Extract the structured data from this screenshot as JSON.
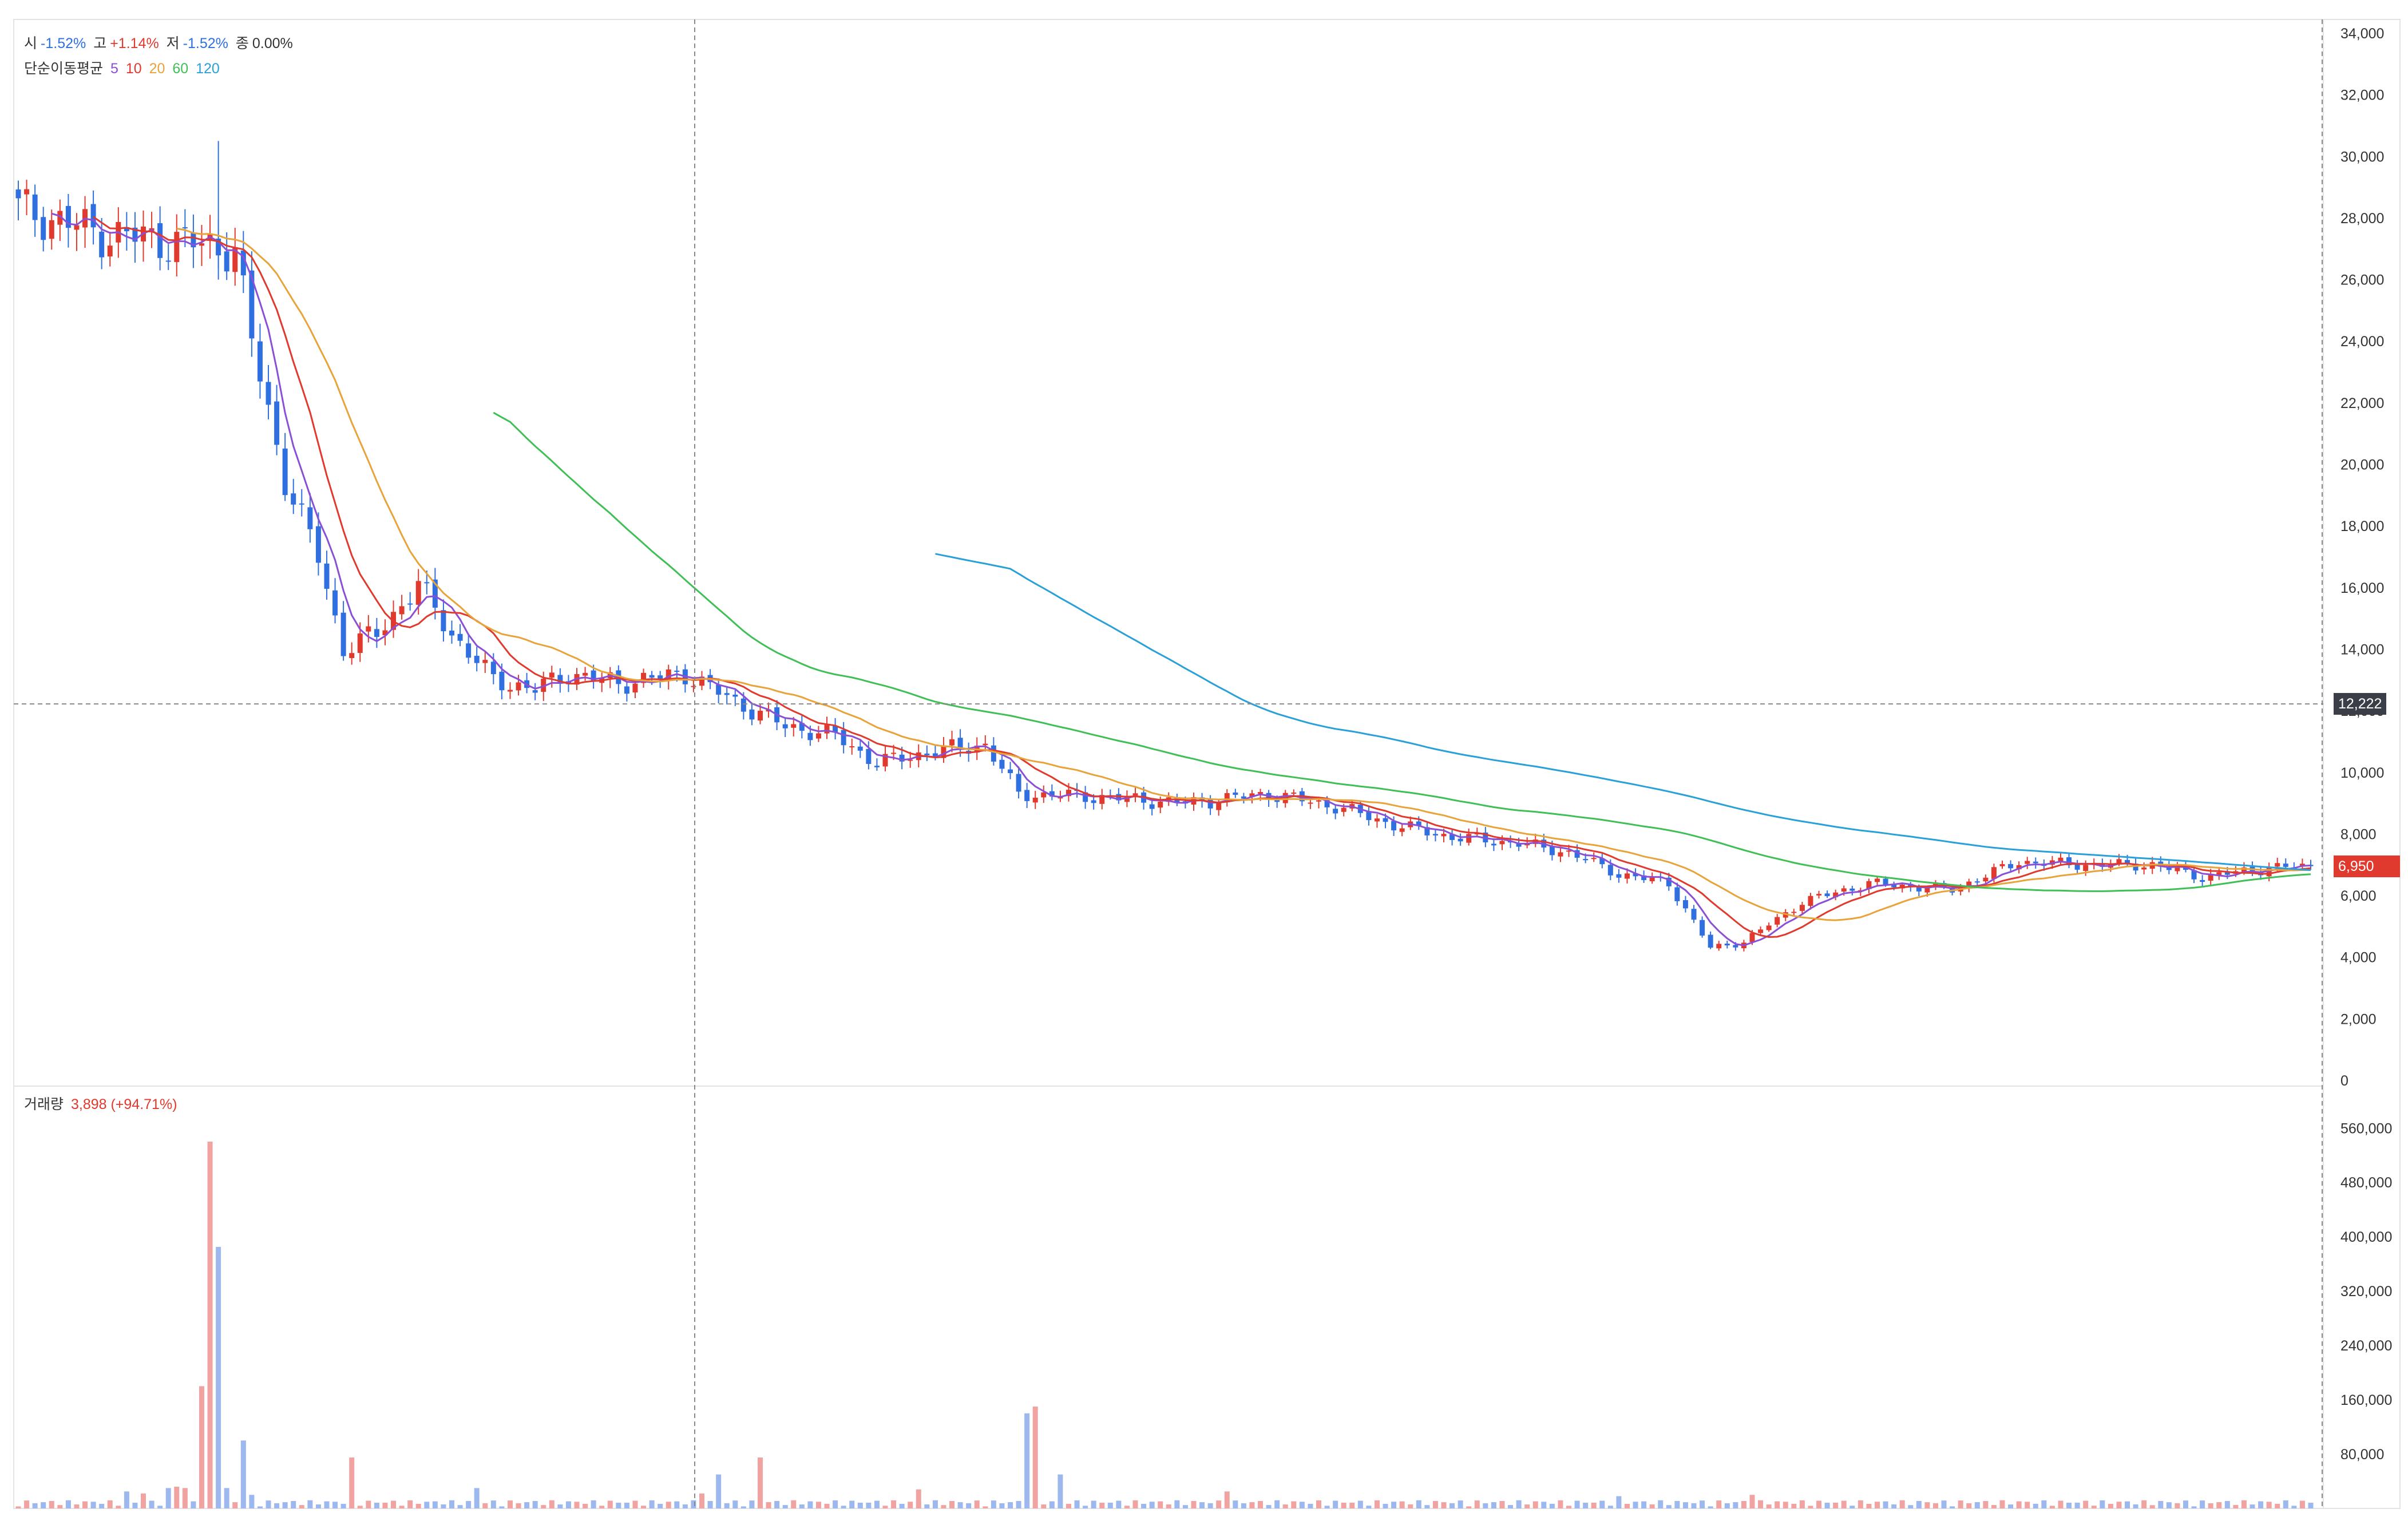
{
  "legend": {
    "open_label": "시",
    "open_value": "-1.52%",
    "high_label": "고",
    "high_value": "+1.14%",
    "low_label": "저",
    "low_value": "-1.52%",
    "close_label": "종",
    "close_value": "0.00%",
    "ma_label": "단순이동평균",
    "ma_periods": [
      "5",
      "10",
      "20",
      "60",
      "120"
    ],
    "volume_label": "거래량",
    "volume_value": "3,898 (+94.71%)"
  },
  "colors": {
    "up": "#e0392d",
    "down": "#2f6fe0",
    "ma5": "#8b4fd6",
    "ma10": "#e0392d",
    "ma20": "#e8a33a",
    "ma60": "#3fbf55",
    "ma120": "#2aa0d8",
    "vol_up": "#f0a3a0",
    "vol_down": "#9cb8ef",
    "grid": "#e6e6e6",
    "crosshair": "#888888"
  },
  "crosshair": {
    "price_label": "12,222",
    "price": 12222
  },
  "current_price": {
    "label": "6,950",
    "price": 6950
  },
  "chart_data": [
    {
      "type": "candlestick",
      "ylim": [
        0,
        34000
      ],
      "yticks": [
        0,
        2000,
        4000,
        6000,
        8000,
        10000,
        12000,
        14000,
        16000,
        18000,
        20000,
        22000,
        24000,
        26000,
        28000,
        30000,
        32000,
        34000
      ],
      "ytick_labels": [
        "0",
        "2,000",
        "4,000",
        "6,000",
        "8,000",
        "10,000",
        "12,000",
        "14,000",
        "16,000",
        "18,000",
        "20,000",
        "22,000",
        "24,000",
        "26,000",
        "28,000",
        "30,000",
        "32,000",
        "34,000"
      ],
      "close_anchors": [
        [
          0,
          28300
        ],
        [
          10,
          27500
        ],
        [
          20,
          27200
        ],
        [
          26,
          27000
        ],
        [
          28,
          24000
        ],
        [
          32,
          19500
        ],
        [
          36,
          17000
        ],
        [
          39,
          14000
        ],
        [
          43,
          14500
        ],
        [
          48,
          16100
        ],
        [
          52,
          14500
        ],
        [
          57,
          13000
        ],
        [
          62,
          12700
        ],
        [
          66,
          13200
        ],
        [
          72,
          12900
        ],
        [
          80,
          13200
        ],
        [
          86,
          12300
        ],
        [
          92,
          11500
        ],
        [
          98,
          11200
        ],
        [
          103,
          10300
        ],
        [
          110,
          10700
        ],
        [
          116,
          10900
        ],
        [
          120,
          9300
        ],
        [
          130,
          9200
        ],
        [
          140,
          9000
        ],
        [
          150,
          9300
        ],
        [
          158,
          8900
        ],
        [
          165,
          8300
        ],
        [
          172,
          7900
        ],
        [
          180,
          7700
        ],
        [
          186,
          7400
        ],
        [
          192,
          6700
        ],
        [
          198,
          6400
        ],
        [
          203,
          4300
        ],
        [
          207,
          4500
        ],
        [
          214,
          5800
        ],
        [
          222,
          6400
        ],
        [
          232,
          6200
        ],
        [
          240,
          7100
        ],
        [
          248,
          7000
        ],
        [
          256,
          7000
        ],
        [
          262,
          6600
        ],
        [
          270,
          6900
        ],
        [
          275,
          6950
        ]
      ],
      "ma_start_index": {
        "ma5": 4,
        "ma10": 9,
        "ma20": 19,
        "ma60": 57,
        "ma120": 110
      }
    },
    {
      "type": "bar",
      "ylim": [
        0,
        600000
      ],
      "yticks": [
        80000,
        160000,
        240000,
        320000,
        400000,
        480000,
        560000
      ],
      "ytick_labels": [
        "80,000",
        "160,000",
        "240,000",
        "320,000",
        "400,000",
        "480,000",
        "560,000"
      ],
      "spikes": [
        [
          13,
          25000
        ],
        [
          15,
          22000
        ],
        [
          18,
          30000
        ],
        [
          19,
          32000
        ],
        [
          20,
          30000
        ],
        [
          22,
          180000
        ],
        [
          23,
          540000
        ],
        [
          24,
          385000
        ],
        [
          25,
          30000
        ],
        [
          27,
          100000
        ],
        [
          28,
          20000
        ],
        [
          40,
          75000
        ],
        [
          55,
          30000
        ],
        [
          82,
          22000
        ],
        [
          84,
          50000
        ],
        [
          89,
          75000
        ],
        [
          108,
          28000
        ],
        [
          121,
          140000
        ],
        [
          122,
          150000
        ],
        [
          125,
          50000
        ],
        [
          145,
          25000
        ],
        [
          192,
          18000
        ],
        [
          208,
          20000
        ]
      ]
    }
  ]
}
